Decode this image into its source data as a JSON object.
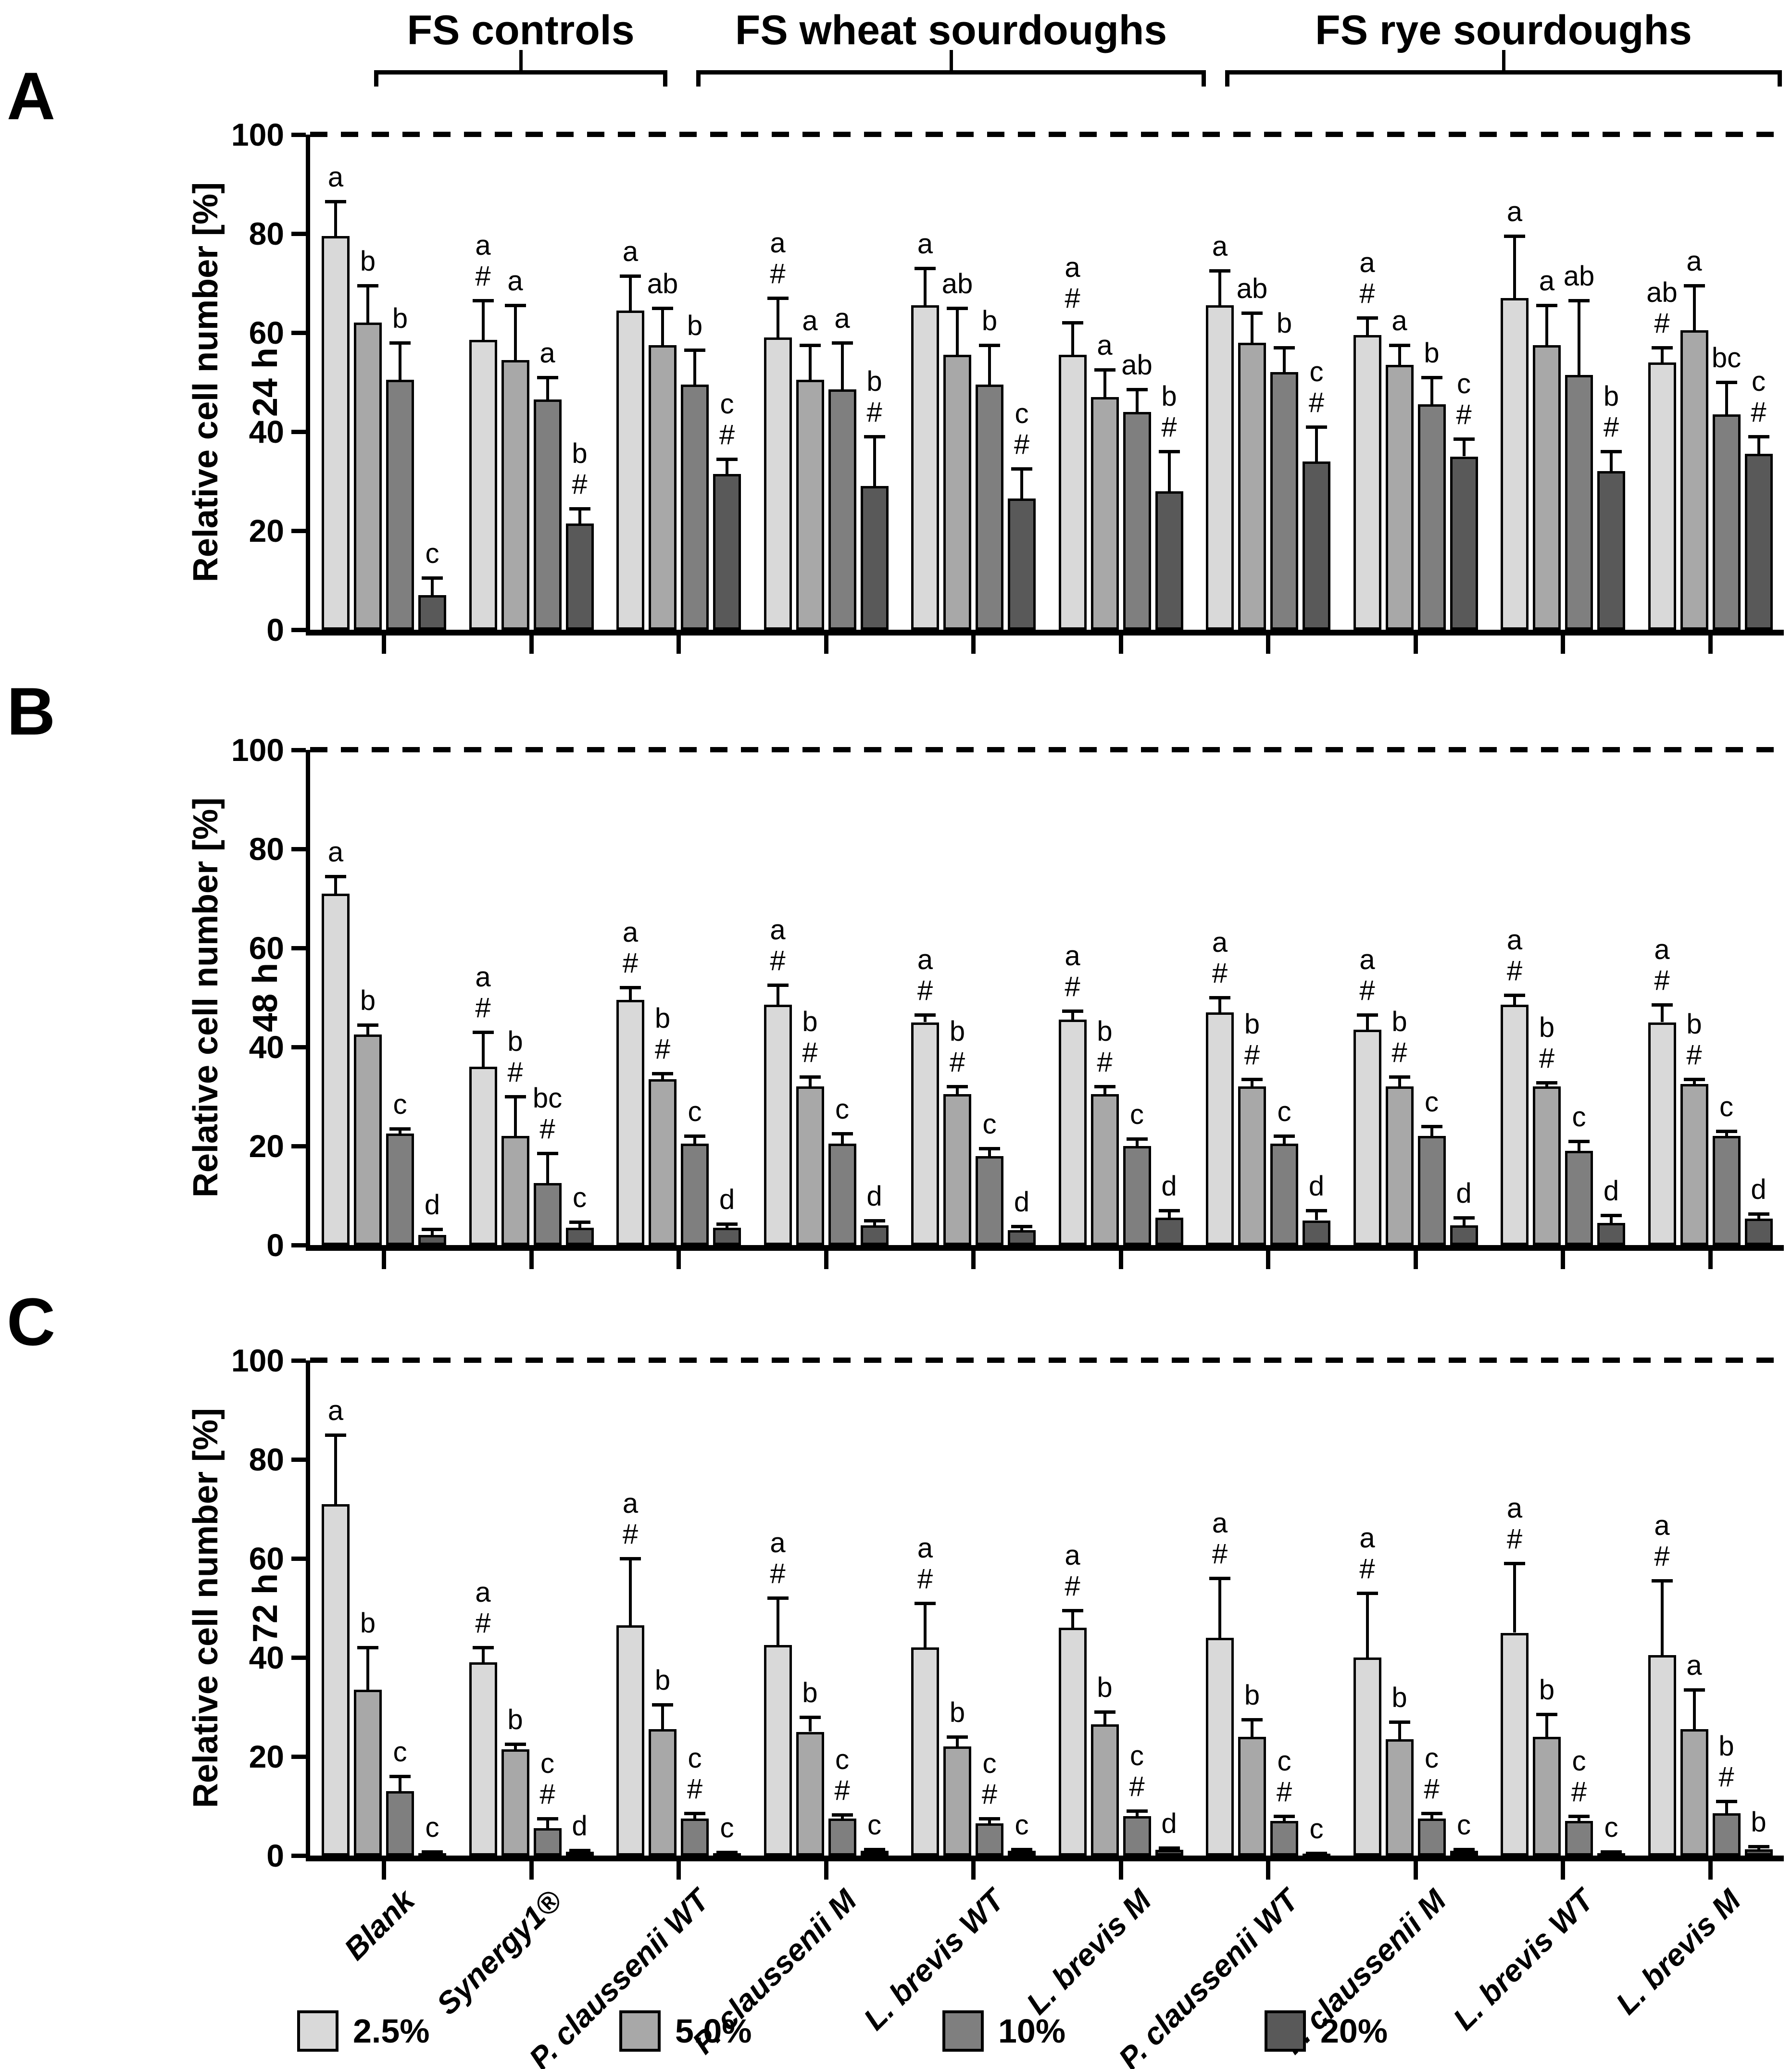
{
  "figure": {
    "panel_letters": [
      "A",
      "B",
      "C"
    ],
    "section_headers": [
      {
        "label": "FS controls",
        "from_group": 0,
        "to_group": 1
      },
      {
        "label": "FS wheat sourdoughs",
        "from_group": 2,
        "to_group": 5
      },
      {
        "label": "FS rye sourdoughs",
        "from_group": 6,
        "to_group": 9
      }
    ],
    "legend": [
      {
        "label": "2.5%",
        "color": "#d9d9d9"
      },
      {
        "label": "5.0%",
        "color": "#a8a8a8"
      },
      {
        "label": "10%",
        "color": "#7f7f7f"
      },
      {
        "label": "20%",
        "color": "#595959"
      }
    ]
  },
  "chart_data": {
    "type": "bar",
    "ylabel": "Relative cell number [%]",
    "ylim": [
      0,
      100
    ],
    "yticks": [
      0,
      20,
      40,
      60,
      80,
      100
    ],
    "reference_line": 100,
    "grid": false,
    "legend_position": "bottom",
    "categories": [
      "Blank",
      "Synergy1®",
      "P. claussenii WT",
      "P. claussenii M",
      "L. brevis WT",
      "L. brevis M",
      "P. claussenii WT",
      "P. claussenii M",
      "L. brevis WT",
      "L. brevis M"
    ],
    "series_legend": [
      "2.5%",
      "5.0%",
      "10%",
      "20%"
    ],
    "series_colors": [
      "#d9d9d9",
      "#a8a8a8",
      "#7f7f7f",
      "#595959"
    ],
    "panels": [
      {
        "label": "A",
        "time": "24 h",
        "groups": [
          {
            "category": "Blank",
            "values": [
              79.5,
              62,
              50.5,
              7
            ],
            "errors": [
              7,
              7.5,
              7.5,
              3.5
            ],
            "sig": [
              [
                "a"
              ],
              [
                "b"
              ],
              [
                "b"
              ],
              [
                "c"
              ]
            ]
          },
          {
            "category": "Synergy1®",
            "values": [
              58.5,
              54.5,
              46.5,
              21.5
            ],
            "errors": [
              8,
              11,
              4.5,
              3
            ],
            "sig": [
              [
                "a",
                "#"
              ],
              [
                "a"
              ],
              [
                "a"
              ],
              [
                "b",
                "#"
              ]
            ]
          },
          {
            "category": "P. claussenii WT",
            "values": [
              64.5,
              57.5,
              49.5,
              31.5
            ],
            "errors": [
              7,
              7.5,
              7,
              3
            ],
            "sig": [
              [
                "a"
              ],
              [
                "ab"
              ],
              [
                "b"
              ],
              [
                "c",
                "#"
              ]
            ]
          },
          {
            "category": "P. claussenii M",
            "values": [
              59,
              50.5,
              48.5,
              29
            ],
            "errors": [
              8,
              7,
              9.5,
              10
            ],
            "sig": [
              [
                "a",
                "#"
              ],
              [
                "a"
              ],
              [
                "a"
              ],
              [
                "b",
                "#"
              ]
            ]
          },
          {
            "category": "L. brevis WT",
            "values": [
              65.5,
              55.5,
              49.5,
              26.5
            ],
            "errors": [
              7.5,
              9.5,
              8,
              6
            ],
            "sig": [
              [
                "a"
              ],
              [
                "ab"
              ],
              [
                "b"
              ],
              [
                "c",
                "#"
              ]
            ]
          },
          {
            "category": "L. brevis M",
            "values": [
              55.5,
              47,
              44,
              28
            ],
            "errors": [
              6.5,
              5.5,
              4.5,
              8
            ],
            "sig": [
              [
                "a",
                "#"
              ],
              [
                "a"
              ],
              [
                "ab"
              ],
              [
                "b",
                "#"
              ]
            ]
          },
          {
            "category": "P. claussenii WT",
            "values": [
              65.5,
              58,
              52,
              34
            ],
            "errors": [
              7,
              6,
              5,
              7
            ],
            "sig": [
              [
                "a"
              ],
              [
                "ab"
              ],
              [
                "b"
              ],
              [
                "c",
                "#"
              ]
            ]
          },
          {
            "category": "P. claussenii M",
            "values": [
              59.5,
              53.5,
              45.5,
              35
            ],
            "errors": [
              3.5,
              4,
              5.5,
              3.5
            ],
            "sig": [
              [
                "a",
                "#"
              ],
              [
                "a"
              ],
              [
                "b"
              ],
              [
                "c",
                "#"
              ]
            ]
          },
          {
            "category": "L. brevis WT",
            "values": [
              67,
              57.5,
              51.5,
              32
            ],
            "errors": [
              12.5,
              8,
              15,
              4
            ],
            "sig": [
              [
                "a"
              ],
              [
                "a"
              ],
              [
                "ab"
              ],
              [
                "b",
                "#"
              ]
            ]
          },
          {
            "category": "L. brevis M",
            "values": [
              54,
              60.5,
              43.5,
              35.5
            ],
            "errors": [
              3,
              9,
              6.5,
              3.5
            ],
            "sig": [
              [
                "ab",
                "#"
              ],
              [
                "a"
              ],
              [
                "bc"
              ],
              [
                "c",
                "#"
              ]
            ]
          }
        ]
      },
      {
        "label": "B",
        "time": "48 h",
        "groups": [
          {
            "category": "Blank",
            "values": [
              71,
              42.5,
              22.5,
              2
            ],
            "errors": [
              3.5,
              2,
              1,
              1.2
            ],
            "sig": [
              [
                "a"
              ],
              [
                "b"
              ],
              [
                "c"
              ],
              [
                "d"
              ]
            ]
          },
          {
            "category": "Synergy1®",
            "values": [
              36,
              22,
              12.5,
              3.5
            ],
            "errors": [
              7,
              8,
              6,
              1.2
            ],
            "sig": [
              [
                "a",
                "#"
              ],
              [
                "b",
                "#"
              ],
              [
                "bc",
                "#"
              ],
              [
                "c"
              ]
            ]
          },
          {
            "category": "P. claussenii WT",
            "values": [
              49.5,
              33.5,
              20.5,
              3.5
            ],
            "errors": [
              2.5,
              1.2,
              1.5,
              0.8
            ],
            "sig": [
              [
                "a",
                "#"
              ],
              [
                "b",
                "#"
              ],
              [
                "c"
              ],
              [
                "d"
              ]
            ]
          },
          {
            "category": "P. claussenii M",
            "values": [
              48.5,
              32,
              20.5,
              4
            ],
            "errors": [
              4,
              2,
              2,
              1
            ],
            "sig": [
              [
                "a",
                "#"
              ],
              [
                "b",
                "#"
              ],
              [
                "c"
              ],
              [
                "d"
              ]
            ]
          },
          {
            "category": "L. brevis WT",
            "values": [
              45,
              30.5,
              18,
              3
            ],
            "errors": [
              1.5,
              1.5,
              1.5,
              0.8
            ],
            "sig": [
              [
                "a",
                "#"
              ],
              [
                "b",
                "#"
              ],
              [
                "c"
              ],
              [
                "d"
              ]
            ]
          },
          {
            "category": "L. brevis M",
            "values": [
              45.5,
              30.5,
              20,
              5.5
            ],
            "errors": [
              1.8,
              1.5,
              1.5,
              1.5
            ],
            "sig": [
              [
                "a",
                "#"
              ],
              [
                "b",
                "#"
              ],
              [
                "c"
              ],
              [
                "d"
              ]
            ]
          },
          {
            "category": "P. claussenii WT",
            "values": [
              47,
              32,
              20.5,
              5
            ],
            "errors": [
              3,
              1.5,
              1.5,
              2
            ],
            "sig": [
              [
                "a",
                "#"
              ],
              [
                "b",
                "#"
              ],
              [
                "c"
              ],
              [
                "d"
              ]
            ]
          },
          {
            "category": "P. claussenii M",
            "values": [
              43.5,
              32,
              22,
              4
            ],
            "errors": [
              3,
              2,
              2,
              1.5
            ],
            "sig": [
              [
                "a",
                "#"
              ],
              [
                "b",
                "#"
              ],
              [
                "c"
              ],
              [
                "d"
              ]
            ]
          },
          {
            "category": "L. brevis WT",
            "values": [
              48.5,
              32,
              19,
              4.5
            ],
            "errors": [
              2,
              0.8,
              2,
              1.5
            ],
            "sig": [
              [
                "a",
                "#"
              ],
              [
                "b",
                "#"
              ],
              [
                "c"
              ],
              [
                "d"
              ]
            ]
          },
          {
            "category": "L. brevis M",
            "values": [
              45,
              32.5,
              22,
              5.3
            ],
            "errors": [
              3.5,
              1,
              1,
              1
            ],
            "sig": [
              [
                "a",
                "#"
              ],
              [
                "b",
                "#"
              ],
              [
                "c"
              ],
              [
                "d"
              ]
            ]
          }
        ]
      },
      {
        "label": "C",
        "time": "72 h",
        "groups": [
          {
            "category": "Blank",
            "values": [
              71,
              33.5,
              13,
              0.5
            ],
            "errors": [
              14,
              8.5,
              3,
              0.3
            ],
            "sig": [
              [
                "a"
              ],
              [
                "b"
              ],
              [
                "c"
              ],
              [
                "c"
              ]
            ]
          },
          {
            "category": "Synergy1®",
            "values": [
              39,
              21.5,
              5.5,
              0.8
            ],
            "errors": [
              3,
              1,
              2,
              0.3
            ],
            "sig": [
              [
                "a",
                "#"
              ],
              [
                "b"
              ],
              [
                "c",
                "#"
              ],
              [
                "d"
              ]
            ]
          },
          {
            "category": "P. claussenii WT",
            "values": [
              46.5,
              25.5,
              7.5,
              0.5
            ],
            "errors": [
              13.5,
              5,
              1,
              0.2
            ],
            "sig": [
              [
                "a",
                "#"
              ],
              [
                "b"
              ],
              [
                "c",
                "#"
              ],
              [
                "c"
              ]
            ]
          },
          {
            "category": "P. claussenii M",
            "values": [
              42.5,
              25,
              7.5,
              1
            ],
            "errors": [
              9.5,
              3,
              0.8,
              0.3
            ],
            "sig": [
              [
                "a",
                "#"
              ],
              [
                "b"
              ],
              [
                "c",
                "#"
              ],
              [
                "c"
              ]
            ]
          },
          {
            "category": "L. brevis WT",
            "values": [
              42,
              22,
              6.5,
              1
            ],
            "errors": [
              9,
              2,
              1,
              0.3
            ],
            "sig": [
              [
                "a",
                "#"
              ],
              [
                "b"
              ],
              [
                "c",
                "#"
              ],
              [
                "c"
              ]
            ]
          },
          {
            "category": "L. brevis M",
            "values": [
              46,
              26.5,
              8,
              1.2
            ],
            "errors": [
              3.5,
              2.5,
              1,
              0.4
            ],
            "sig": [
              [
                "a",
                "#"
              ],
              [
                "b"
              ],
              [
                "c",
                "#"
              ],
              [
                "d"
              ]
            ]
          },
          {
            "category": "P. claussenii WT",
            "values": [
              44,
              24,
              7,
              0.3
            ],
            "errors": [
              12,
              3.5,
              1,
              0.2
            ],
            "sig": [
              [
                "a",
                "#"
              ],
              [
                "b"
              ],
              [
                "c",
                "#"
              ],
              [
                "c"
              ]
            ]
          },
          {
            "category": "P. claussenii M",
            "values": [
              40,
              23.5,
              7.5,
              1
            ],
            "errors": [
              13,
              3.5,
              1,
              0.3
            ],
            "sig": [
              [
                "a",
                "#"
              ],
              [
                "b"
              ],
              [
                "c",
                "#"
              ],
              [
                "c"
              ]
            ]
          },
          {
            "category": "L. brevis WT",
            "values": [
              45,
              24,
              7,
              0.5
            ],
            "errors": [
              14,
              4.5,
              1,
              0.3
            ],
            "sig": [
              [
                "a",
                "#"
              ],
              [
                "b"
              ],
              [
                "c",
                "#"
              ],
              [
                "c"
              ]
            ]
          },
          {
            "category": "L. brevis M",
            "values": [
              40.5,
              25.5,
              8.5,
              1.3
            ],
            "errors": [
              15,
              8,
              2.5,
              0.5
            ],
            "sig": [
              [
                "a",
                "#"
              ],
              [
                "a"
              ],
              [
                "b",
                "#"
              ],
              [
                "b"
              ]
            ]
          }
        ]
      }
    ]
  }
}
